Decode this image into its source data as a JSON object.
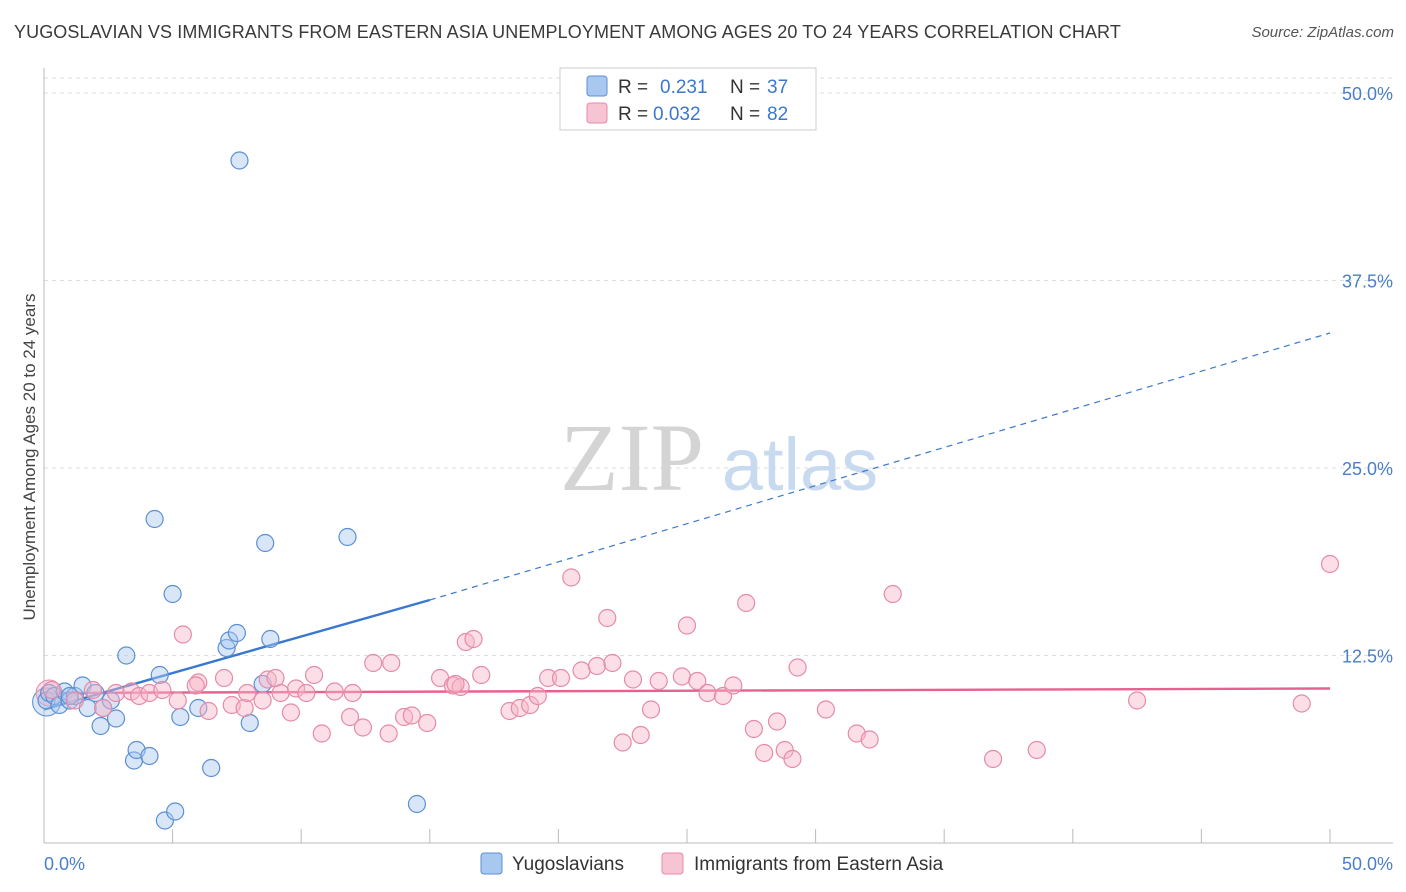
{
  "title": "YUGOSLAVIAN VS IMMIGRANTS FROM EASTERN ASIA UNEMPLOYMENT AMONG AGES 20 TO 24 YEARS CORRELATION CHART",
  "source": "Source: ZipAtlas.com",
  "watermark": {
    "zip": "ZIP",
    "atlas": "atlas"
  },
  "colors": {
    "blue_fill": "#a8c8f0",
    "blue_stroke": "#5b8fd4",
    "blue_line": "#3a78d0",
    "pink_fill": "#f6b6c8",
    "pink_stroke": "#e58aa8",
    "pink_line": "#e8608e",
    "axis_label": "#4a7fc8",
    "grid": "#dddddd"
  },
  "legend": {
    "r_label": "R =",
    "n_label": "N =",
    "series": [
      {
        "name": "Yugoslavians",
        "r": "0.231",
        "n": "37"
      },
      {
        "name": "Immigrants from Eastern Asia",
        "r": "0.032",
        "n": "82"
      }
    ]
  },
  "chart_data": {
    "type": "scatter",
    "title": "YUGOSLAVIAN VS IMMIGRANTS FROM EASTERN ASIA UNEMPLOYMENT AMONG AGES 20 TO 24 YEARS CORRELATION CHART",
    "xlabel": "",
    "ylabel": "Unemployment Among Ages 20 to 24 years",
    "xlim": [
      0,
      50
    ],
    "ylim": [
      0,
      51
    ],
    "x_tick_labels": [
      "0.0%",
      "50.0%"
    ],
    "y_ticks": [
      12.5,
      25.0,
      37.5,
      50.0
    ],
    "y_tick_labels": [
      "12.5%",
      "25.0%",
      "37.5%",
      "50.0%"
    ],
    "grid": true,
    "legend_position": "top-center",
    "series": [
      {
        "name": "Yugoslavians",
        "points": [
          [
            0.1,
            9.5
          ],
          [
            0.2,
            10.0
          ],
          [
            0.4,
            9.8
          ],
          [
            0.6,
            9.2
          ],
          [
            0.8,
            10.1
          ],
          [
            1.0,
            9.5
          ],
          [
            1.2,
            9.8
          ],
          [
            1.5,
            10.5
          ],
          [
            1.7,
            9.0
          ],
          [
            2.0,
            10.0
          ],
          [
            2.2,
            7.8
          ],
          [
            2.3,
            9.0
          ],
          [
            2.6,
            9.5
          ],
          [
            2.8,
            8.3
          ],
          [
            3.2,
            12.5
          ],
          [
            3.5,
            5.5
          ],
          [
            3.6,
            6.2
          ],
          [
            4.1,
            5.8
          ],
          [
            4.3,
            21.6
          ],
          [
            4.5,
            11.2
          ],
          [
            4.7,
            1.5
          ],
          [
            5.0,
            16.6
          ],
          [
            5.1,
            2.1
          ],
          [
            5.3,
            8.4
          ],
          [
            6.0,
            9.0
          ],
          [
            6.5,
            5.0
          ],
          [
            7.1,
            13.0
          ],
          [
            7.2,
            13.5
          ],
          [
            7.5,
            14.0
          ],
          [
            7.6,
            45.5
          ],
          [
            8.0,
            8.0
          ],
          [
            8.5,
            10.6
          ],
          [
            8.6,
            20.0
          ],
          [
            8.8,
            13.6
          ],
          [
            11.8,
            20.4
          ],
          [
            14.5,
            2.6
          ],
          [
            1.0,
            9.8
          ]
        ],
        "trend": {
          "x": [
            0,
            15.0
          ],
          "y": [
            8.9,
            16.2
          ],
          "dashed_to": [
            50,
            34.0
          ]
        }
      },
      {
        "name": "Immigrants from Eastern Asia",
        "points": [
          [
            0.3,
            10.2
          ],
          [
            1.2,
            9.5
          ],
          [
            1.9,
            10.2
          ],
          [
            2.3,
            9.0
          ],
          [
            2.8,
            10.0
          ],
          [
            3.4,
            10.1
          ],
          [
            3.7,
            9.8
          ],
          [
            4.1,
            10.0
          ],
          [
            4.6,
            10.2
          ],
          [
            5.2,
            9.5
          ],
          [
            5.4,
            13.9
          ],
          [
            6.0,
            10.7
          ],
          [
            6.4,
            8.8
          ],
          [
            7.0,
            11.0
          ],
          [
            7.3,
            9.2
          ],
          [
            7.8,
            9.0
          ],
          [
            7.9,
            10.0
          ],
          [
            8.5,
            9.5
          ],
          [
            8.7,
            10.9
          ],
          [
            9.2,
            10.0
          ],
          [
            9.6,
            8.7
          ],
          [
            9.8,
            10.3
          ],
          [
            10.5,
            11.2
          ],
          [
            10.8,
            7.3
          ],
          [
            11.3,
            10.1
          ],
          [
            11.9,
            8.4
          ],
          [
            12.4,
            7.7
          ],
          [
            12.8,
            12.0
          ],
          [
            13.4,
            7.3
          ],
          [
            13.5,
            12.0
          ],
          [
            14.0,
            8.4
          ],
          [
            14.3,
            8.5
          ],
          [
            14.9,
            8.0
          ],
          [
            15.4,
            11.0
          ],
          [
            15.9,
            10.5
          ],
          [
            16.2,
            10.4
          ],
          [
            16.4,
            13.4
          ],
          [
            16.7,
            13.6
          ],
          [
            17.0,
            11.2
          ],
          [
            18.1,
            8.8
          ],
          [
            18.5,
            9.0
          ],
          [
            18.9,
            9.2
          ],
          [
            19.2,
            9.8
          ],
          [
            19.6,
            11.0
          ],
          [
            20.1,
            11.0
          ],
          [
            20.5,
            17.7
          ],
          [
            20.9,
            11.5
          ],
          [
            21.5,
            11.8
          ],
          [
            21.9,
            15.0
          ],
          [
            22.1,
            12.0
          ],
          [
            22.5,
            6.7
          ],
          [
            22.9,
            10.9
          ],
          [
            23.2,
            7.2
          ],
          [
            23.6,
            8.9
          ],
          [
            23.9,
            10.8
          ],
          [
            24.8,
            11.1
          ],
          [
            25.0,
            14.5
          ],
          [
            25.4,
            10.8
          ],
          [
            25.8,
            10.0
          ],
          [
            26.4,
            9.8
          ],
          [
            26.8,
            10.5
          ],
          [
            27.3,
            16.0
          ],
          [
            27.6,
            7.6
          ],
          [
            28.0,
            6.0
          ],
          [
            28.5,
            8.1
          ],
          [
            28.8,
            6.2
          ],
          [
            29.1,
            5.6
          ],
          [
            29.3,
            11.7
          ],
          [
            30.4,
            8.9
          ],
          [
            31.6,
            7.3
          ],
          [
            32.1,
            6.9
          ],
          [
            33.0,
            16.6
          ],
          [
            36.9,
            5.6
          ],
          [
            38.6,
            6.2
          ],
          [
            42.5,
            9.5
          ],
          [
            48.9,
            9.3
          ],
          [
            50.0,
            18.6
          ],
          [
            16.0,
            10.6
          ],
          [
            10.2,
            10.0
          ],
          [
            9.0,
            11.0
          ],
          [
            12.0,
            10.0
          ],
          [
            5.9,
            10.5
          ]
        ],
        "trend": {
          "x": [
            0,
            50
          ],
          "y": [
            10.0,
            10.3
          ]
        }
      }
    ]
  }
}
